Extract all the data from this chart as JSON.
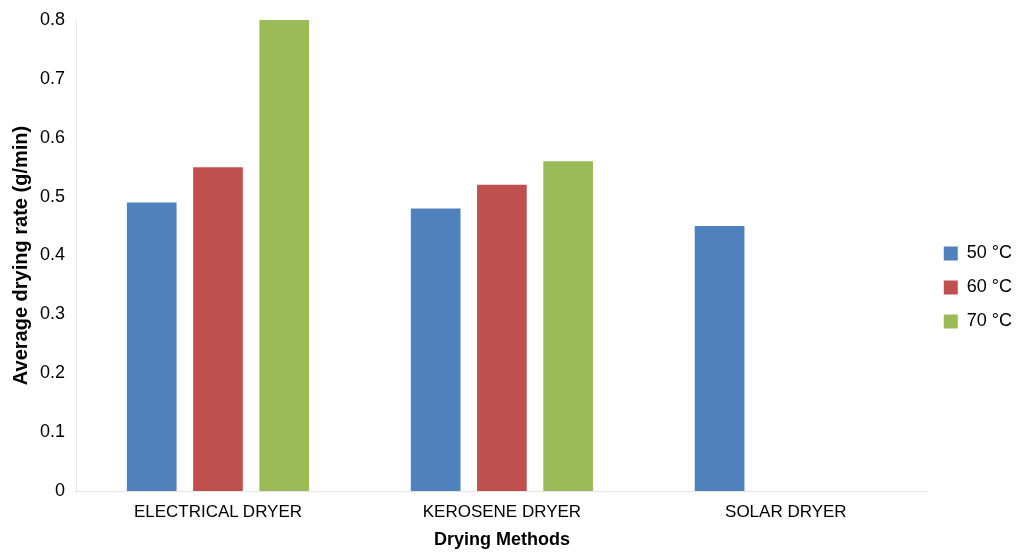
{
  "chart_data": {
    "type": "bar",
    "xlabel": "Drying Methods",
    "ylabel": "Average drying rate (g/min)",
    "categories": [
      "ELECTRICAL DRYER",
      "KEROSENE DRYER",
      "SOLAR DRYER"
    ],
    "series": [
      {
        "name": "50 °C",
        "color": "#4f81bd",
        "values": [
          0.49,
          0.48,
          0.45
        ]
      },
      {
        "name": "60 °C",
        "color": "#c0504d",
        "values": [
          0.55,
          0.52,
          null
        ]
      },
      {
        "name": "70 °C",
        "color": "#9bbb59",
        "values": [
          0.8,
          0.56,
          null
        ]
      }
    ],
    "ylim": [
      0,
      0.8
    ],
    "yticks": [
      0,
      0.1,
      0.2,
      0.3,
      0.4,
      0.5,
      0.6,
      0.7,
      0.8
    ],
    "grid": false,
    "legend": "right"
  }
}
